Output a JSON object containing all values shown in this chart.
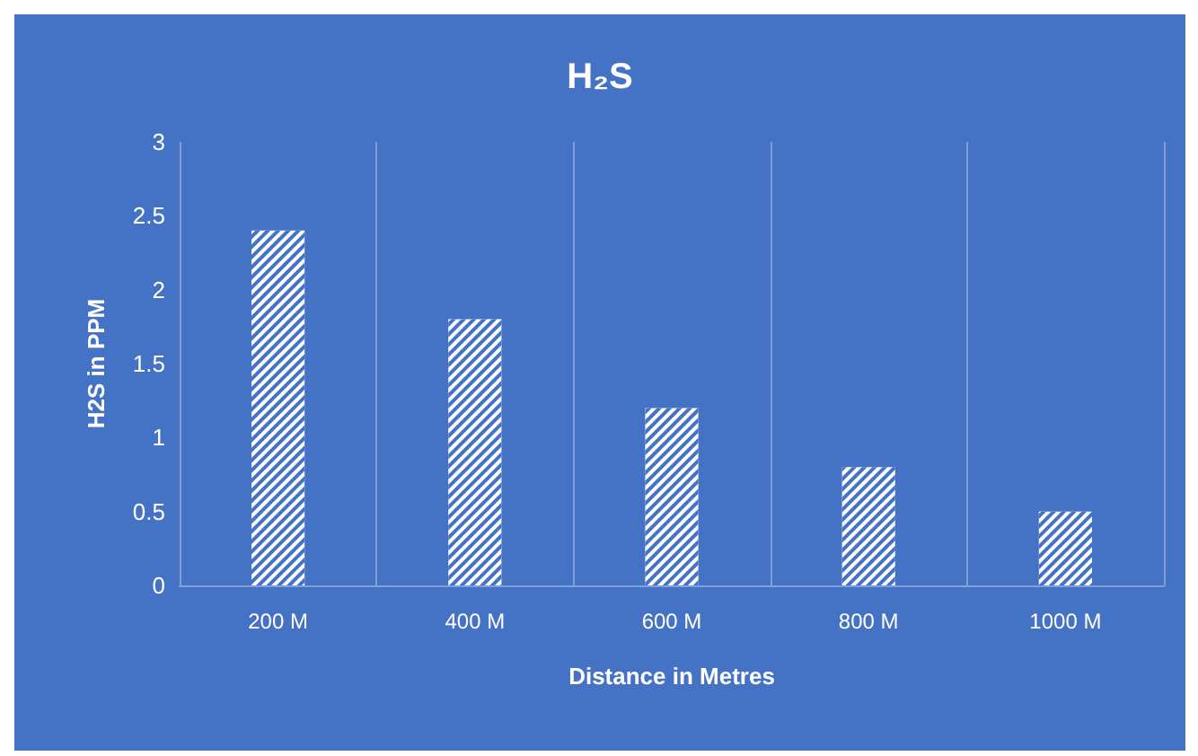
{
  "chart_data": {
    "type": "bar",
    "title": "H₂S",
    "xlabel": "Distance in Metres",
    "ylabel": "H2S in PPM",
    "categories": [
      "200 M",
      "400 M",
      "600 M",
      "800 M",
      "1000 M"
    ],
    "values": [
      2.4,
      1.8,
      1.2,
      0.8,
      0.5
    ],
    "color": "#ffffff",
    "ylim": [
      0,
      3
    ],
    "yticks": [
      0,
      0.5,
      1,
      1.5,
      2,
      2.5,
      3
    ],
    "grid": "x"
  }
}
